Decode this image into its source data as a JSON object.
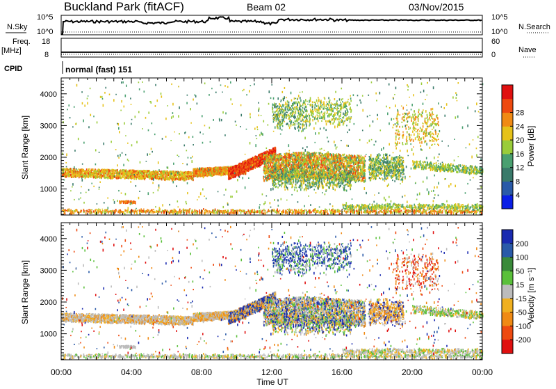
{
  "header": {
    "station": "Buckland Park (fitACF)",
    "beam": "Beam 02",
    "date": "03/Nov/2015"
  },
  "nsky_panel": {
    "left_label": "N.Sky",
    "left_ticks": [
      "10^5",
      "10^0"
    ],
    "right_ticks": [
      "10^5",
      "10^0"
    ],
    "right_label": "N.Search"
  },
  "freq_panel": {
    "left_label": "Freq.",
    "unit_label": "[MHz]",
    "left_ticks": [
      "18",
      "8"
    ],
    "right_ticks": [
      "60",
      "0"
    ],
    "right_label": "Nave"
  },
  "cpid": {
    "label": "CPID",
    "text": "normal (fast) 151"
  },
  "x_axis": {
    "label": "Time UT",
    "ticks": [
      "00:00",
      "04:00",
      "08:00",
      "12:00",
      "16:00",
      "20:00",
      "00:00"
    ]
  },
  "chart_data": [
    {
      "type": "heatmap",
      "name": "power",
      "ylabel": "Slant Range [km]",
      "xlabel": "Time UT",
      "xlim": [
        0,
        24
      ],
      "ylim": [
        180,
        4500
      ],
      "yticks": [
        "1000",
        "2000",
        "3000",
        "4000"
      ],
      "colorbar": {
        "label": "Power [dB]",
        "ticks": [
          "4",
          "8",
          "12",
          "16",
          "20",
          "24",
          "28"
        ],
        "colors": [
          "#0a1ee6",
          "#2a5aa8",
          "#3a7a6a",
          "#4aa070",
          "#9acc3a",
          "#e6c21a",
          "#f08a14",
          "#ee4a10",
          "#e01010"
        ]
      }
    },
    {
      "type": "heatmap",
      "name": "velocity",
      "ylabel": "Slant Range [km]",
      "xlabel": "Time UT",
      "xlim": [
        0,
        24
      ],
      "ylim": [
        180,
        4500
      ],
      "yticks": [
        "1000",
        "2000",
        "3000",
        "4000"
      ],
      "colorbar": {
        "label": "Velocity [m s⁻¹]",
        "ticks": [
          "200",
          "100",
          "50",
          "15",
          "-15",
          "-50",
          "-100",
          "-200"
        ],
        "colors": [
          "#1a2ab0",
          "#2a5aa8",
          "#3a8a3a",
          "#5ac03a",
          "#bcbcbc",
          "#f0b020",
          "#f08a14",
          "#ee4a10",
          "#e01010"
        ]
      }
    }
  ]
}
